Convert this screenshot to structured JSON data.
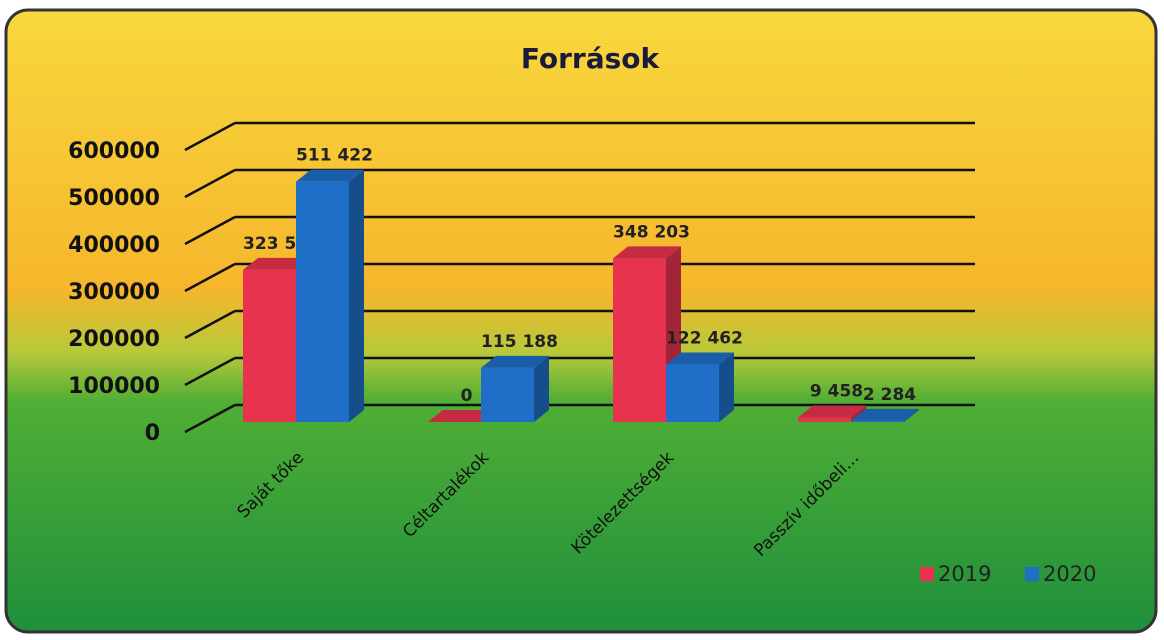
{
  "chart_data": {
    "type": "bar3d",
    "title": "Források",
    "categories": [
      "Saját tőke",
      "Céltartalékok",
      "Kötelezettségek",
      "Passzív időbeli..."
    ],
    "series": [
      {
        "name": "2019",
        "color": "#e8334f",
        "values": [
          323597,
          0,
          348203,
          9458
        ],
        "value_labels": [
          "323 597",
          "0",
          "348 203",
          "9 458"
        ]
      },
      {
        "name": "2020",
        "color": "#1f6fc8",
        "values": [
          511422,
          115188,
          122462,
          2284
        ],
        "value_labels": [
          "511 422",
          "115 188",
          "122 462",
          "2 284"
        ]
      }
    ],
    "ylim": [
      0,
      600000
    ],
    "yticks": [
      0,
      100000,
      200000,
      300000,
      400000,
      500000,
      600000
    ],
    "grid": true
  }
}
